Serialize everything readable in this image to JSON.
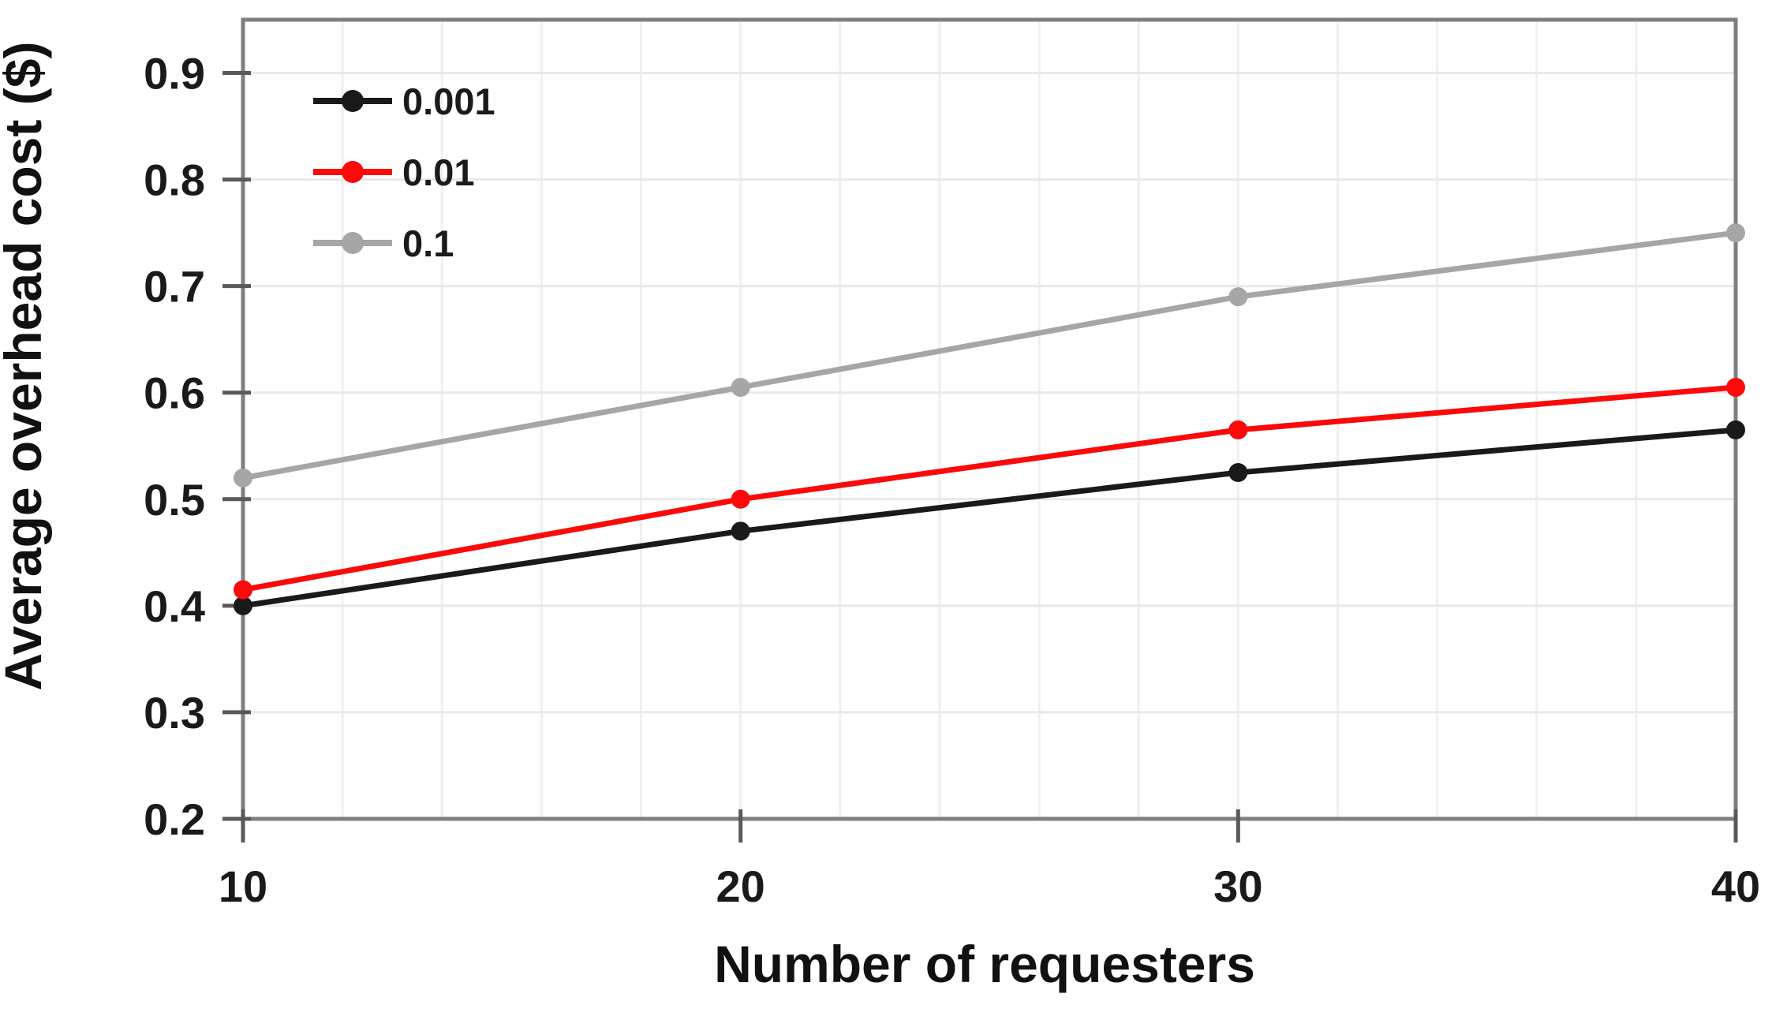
{
  "chart_data": {
    "type": "line",
    "title": "",
    "xlabel": "Number of requesters",
    "ylabel": "Average overhead cost ($)",
    "x": [
      10,
      20,
      30,
      40
    ],
    "series": [
      {
        "name": "0.001",
        "color": "#1a1a1a",
        "values": [
          0.4,
          0.47,
          0.525,
          0.565
        ]
      },
      {
        "name": "0.01",
        "color": "#fb0a0a",
        "values": [
          0.415,
          0.5,
          0.565,
          0.605
        ]
      },
      {
        "name": "0.1",
        "color": "#a6a6a6",
        "values": [
          0.52,
          0.605,
          0.69,
          0.75
        ]
      }
    ],
    "xlim": [
      10,
      40
    ],
    "ylim": [
      0.2,
      0.95
    ],
    "x_ticks": [
      "10",
      "20",
      "30",
      "40"
    ],
    "y_ticks": [
      "0.2",
      "0.3",
      "0.4",
      "0.5",
      "0.6",
      "0.7",
      "0.8",
      "0.9"
    ],
    "x_minor_grid_step": 2,
    "grid": true,
    "legend_position": "top-left-inside",
    "legend_entries": [
      "0.001",
      "0.01",
      "0.1"
    ]
  },
  "style_colors": {
    "plot_border": "#7f7f7f",
    "tick_mark": "#595959",
    "grid_horizontal": "#e9e9e9",
    "grid_vertical": "#f0f0f0",
    "background": "#ffffff",
    "text": "#1a1a1a"
  }
}
